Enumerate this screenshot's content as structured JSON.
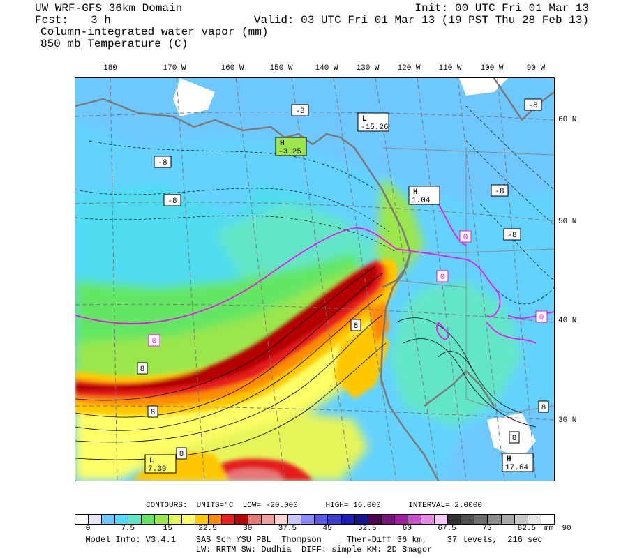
{
  "header": {
    "model_title": "UW WRF-GFS 36km Domain",
    "init_time": "Init: 00 UTC Fri 01 Mar 13",
    "fcst_label": "Fcst:",
    "fcst_value": "3 h",
    "valid_time": "Valid: 03 UTC Fri 01 Mar 13 (19 PST Thu 28 Feb 13)",
    "field_1": "Column-integrated water vapor (mm)",
    "field_2": "850 mb Temperature (C)"
  },
  "longitude_labels": [
    "180",
    "170 W",
    "160 W",
    "150 W",
    "140 W",
    "130 W",
    "120 W",
    "110 W",
    "100 W",
    "90 W"
  ],
  "latitude_labels": [
    "60 N",
    "50 N",
    "40 N",
    "30 N"
  ],
  "contour_info": {
    "contours_label": "CONTOURS:",
    "units": "UNITS=°C",
    "low": "LOW= -20.000",
    "high": "HIGH= 16.000",
    "interval": "INTERVAL= 2.0000"
  },
  "pressure_centers": [
    {
      "kind": "L",
      "value": "-15.26",
      "color": "#ffffff"
    },
    {
      "kind": "H",
      "value": "-3.25",
      "color": "#9be64b"
    },
    {
      "kind": "H",
      "value": "1.04",
      "color": "#ffffff"
    },
    {
      "kind": "L",
      "value": "7.39",
      "color": "#ffff66"
    },
    {
      "kind": "H",
      "value": "17.64",
      "color": "#ffffff"
    }
  ],
  "contour_labels": [
    "-8",
    "-8",
    "-8",
    "-8",
    "-8",
    "-8",
    "0",
    "0",
    "0",
    "0",
    "8",
    "8",
    "8",
    "8",
    "8",
    "8"
  ],
  "colorbar": {
    "labels": [
      "0",
      "7.5",
      "15",
      "22.5",
      "30",
      "37.5",
      "45",
      "52.5",
      "60",
      "67.5",
      "75",
      "82.5",
      "90"
    ],
    "unit": "mm",
    "colors": [
      "#ffffff",
      "#e6e6f0",
      "#6ec8ff",
      "#50dcff",
      "#64e6c8",
      "#64e664",
      "#9be64b",
      "#e6f55a",
      "#ffff66",
      "#ffc800",
      "#ff8c00",
      "#e61e1e",
      "#b40000",
      "#e67878",
      "#f0a0a0",
      "#fad2d2",
      "#c8c8ff",
      "#8c8cff",
      "#5a5ae6",
      "#3c3cc8",
      "#1e1eb4",
      "#14148c",
      "#500050",
      "#781478",
      "#a01ea0",
      "#c850c8",
      "#e68ce6",
      "#f5c8f5",
      "#323232",
      "#505050",
      "#6e6e6e",
      "#8c8c8c",
      "#aaaaaa",
      "#c8c8c8",
      "#e6e6e6",
      "#ffffff"
    ]
  },
  "footer": {
    "line1": "Model Info: V3.4.1    SAS Sch YSU PBL  Thompson     Ther-Diff 36 km,    37 levels,  216 sec",
    "line2": "LW: RRTM SW: Dudhia  DIFF: simple KM: 2D Smagor"
  }
}
